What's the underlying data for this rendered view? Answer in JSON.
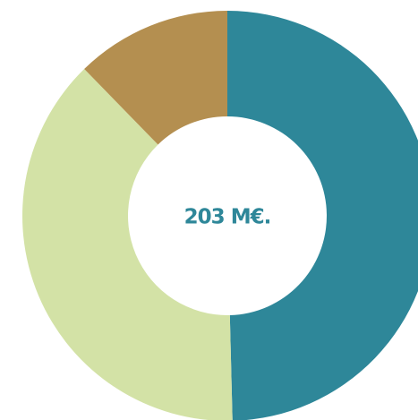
{
  "chart_data": {
    "type": "donut",
    "values": [
      49.6,
      38.1,
      12.3
    ],
    "colors": [
      "#2e8799",
      "#d3e2a6",
      "#b48f50"
    ],
    "center_label": "203 M€.",
    "center_label_color": "#2e8799"
  }
}
